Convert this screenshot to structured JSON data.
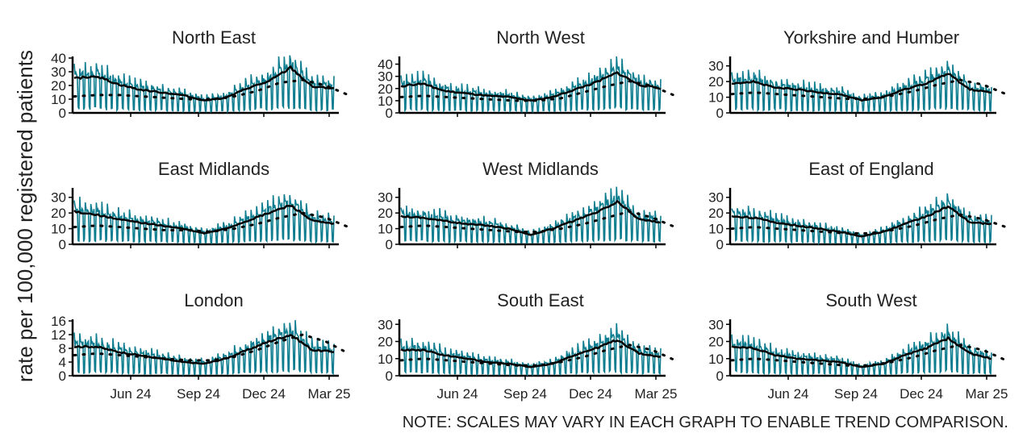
{
  "figure": {
    "ylabel": "rate per 100,000 registered patients",
    "note": "NOTE: SCALES MAY VARY IN EACH GRAPH TO ENABLE TREND COMPARISON.",
    "colors": {
      "daily": "#0e7d8f",
      "smoothed": "#000000",
      "baseline": "#000000"
    }
  },
  "chart_data": [
    {
      "type": "line",
      "title": "North East",
      "ylim": [
        0,
        40
      ],
      "yticks": [
        0,
        10,
        20,
        30,
        40
      ],
      "xticks": [
        "Jun 24",
        "Sep 24",
        "Dec 24",
        "Mar 25"
      ],
      "x": [
        "Mar 24",
        "Apr 24",
        "May 24",
        "Jun 24",
        "Jul 24",
        "Aug 24",
        "Sep 24",
        "Oct 24",
        "Nov 24",
        "Dec 24",
        "Jan 25",
        "Feb 25",
        "Mar 25"
      ],
      "series": [
        {
          "name": "",
          "values": [
            25,
            27,
            21,
            17,
            15,
            13,
            9,
            11,
            18,
            23,
            33,
            19,
            18
          ]
        },
        {
          "name": "",
          "values": [
            12,
            13,
            13,
            12,
            11,
            10,
            10,
            12,
            16,
            22,
            24,
            20,
            13
          ]
        }
      ]
    },
    {
      "type": "line",
      "title": "North West",
      "ylim": [
        0,
        45
      ],
      "yticks": [
        0,
        10,
        20,
        30,
        40
      ],
      "xticks": [
        "Jun 24",
        "Sep 24",
        "Dec 24",
        "Mar 25"
      ],
      "x": [
        "Mar 24",
        "Apr 24",
        "May 24",
        "Jun 24",
        "Jul 24",
        "Aug 24",
        "Sep 24",
        "Oct 24",
        "Nov 24",
        "Dec 24",
        "Jan 25",
        "Feb 25",
        "Mar 25"
      ],
      "series": [
        {
          "name": "",
          "values": [
            22,
            24,
            18,
            16,
            14,
            13,
            10,
            13,
            19,
            25,
            33,
            23,
            20
          ]
        },
        {
          "name": "",
          "values": [
            13,
            14,
            13,
            12,
            11,
            10,
            10,
            12,
            17,
            22,
            26,
            22,
            14
          ]
        }
      ]
    },
    {
      "type": "line",
      "title": "Yorkshire and Humber",
      "ylim": [
        0,
        35
      ],
      "yticks": [
        0,
        10,
        20,
        30
      ],
      "xticks": [
        "Jun 24",
        "Sep 24",
        "Dec 24",
        "Mar 25"
      ],
      "x": [
        "Mar 24",
        "Apr 24",
        "May 24",
        "Jun 24",
        "Jul 24",
        "Aug 24",
        "Sep 24",
        "Oct 24",
        "Nov 24",
        "Dec 24",
        "Jan 25",
        "Feb 25",
        "Mar 25"
      ],
      "series": [
        {
          "name": "",
          "values": [
            19,
            20,
            16,
            15,
            13,
            12,
            8,
            10,
            15,
            19,
            25,
            15,
            13
          ]
        },
        {
          "name": "",
          "values": [
            12,
            13,
            12,
            11,
            10,
            9,
            9,
            11,
            14,
            18,
            21,
            18,
            12
          ]
        }
      ]
    },
    {
      "type": "line",
      "title": "East Midlands",
      "ylim": [
        0,
        35
      ],
      "yticks": [
        0,
        10,
        20,
        30
      ],
      "xticks": [
        "Jun 24",
        "Sep 24",
        "Dec 24",
        "Mar 25"
      ],
      "x": [
        "Mar 24",
        "Apr 24",
        "May 24",
        "Jun 24",
        "Jul 24",
        "Aug 24",
        "Sep 24",
        "Oct 24",
        "Nov 24",
        "Dec 24",
        "Jan 25",
        "Feb 25",
        "Mar 25"
      ],
      "series": [
        {
          "name": "",
          "values": [
            21,
            19,
            16,
            14,
            12,
            10,
            7,
            10,
            15,
            20,
            25,
            15,
            13
          ]
        },
        {
          "name": "",
          "values": [
            11,
            12,
            11,
            10,
            9,
            9,
            8,
            10,
            13,
            17,
            20,
            17,
            11
          ]
        }
      ]
    },
    {
      "type": "line",
      "title": "West Midlands",
      "ylim": [
        0,
        35
      ],
      "yticks": [
        0,
        10,
        20,
        30
      ],
      "xticks": [
        "Jun 24",
        "Sep 24",
        "Dec 24",
        "Mar 25"
      ],
      "x": [
        "Mar 24",
        "Apr 24",
        "May 24",
        "Jun 24",
        "Jul 24",
        "Aug 24",
        "Sep 24",
        "Oct 24",
        "Nov 24",
        "Dec 24",
        "Jan 25",
        "Feb 25",
        "Mar 25"
      ],
      "series": [
        {
          "name": "",
          "values": [
            18,
            17,
            15,
            13,
            12,
            10,
            6,
            10,
            15,
            20,
            27,
            16,
            14
          ]
        },
        {
          "name": "",
          "values": [
            11,
            12,
            11,
            10,
            9,
            8,
            8,
            10,
            13,
            17,
            21,
            17,
            11
          ]
        }
      ]
    },
    {
      "type": "line",
      "title": "East of England",
      "ylim": [
        0,
        35
      ],
      "yticks": [
        0,
        10,
        20,
        30
      ],
      "xticks": [
        "Jun 24",
        "Sep 24",
        "Dec 24",
        "Mar 25"
      ],
      "x": [
        "Mar 24",
        "Apr 24",
        "May 24",
        "Jun 24",
        "Jul 24",
        "Aug 24",
        "Sep 24",
        "Oct 24",
        "Nov 24",
        "Dec 24",
        "Jan 25",
        "Feb 25",
        "Mar 25"
      ],
      "series": [
        {
          "name": "",
          "values": [
            18,
            17,
            14,
            12,
            10,
            8,
            5,
            8,
            13,
            18,
            24,
            14,
            13
          ]
        },
        {
          "name": "",
          "values": [
            10,
            11,
            10,
            9,
            8,
            7,
            7,
            9,
            12,
            16,
            19,
            16,
            11
          ]
        }
      ]
    },
    {
      "type": "line",
      "title": "London",
      "ylim": [
        0,
        16
      ],
      "yticks": [
        0,
        4,
        8,
        12,
        16
      ],
      "xticks": [
        "Jun 24",
        "Sep 24",
        "Dec 24",
        "Mar 25"
      ],
      "x": [
        "Mar 24",
        "Apr 24",
        "May 24",
        "Jun 24",
        "Jul 24",
        "Aug 24",
        "Sep 24",
        "Oct 24",
        "Nov 24",
        "Dec 24",
        "Jan 25",
        "Feb 25",
        "Mar 25"
      ],
      "series": [
        {
          "name": "",
          "values": [
            8.5,
            8.5,
            7,
            6,
            5,
            4,
            3.5,
            5,
            7.5,
            10,
            12,
            7.5,
            7
          ]
        },
        {
          "name": "",
          "values": [
            6,
            6.5,
            6,
            5.5,
            5,
            4.5,
            4.5,
            5.5,
            7.5,
            10,
            12,
            10,
            6.5
          ]
        }
      ]
    },
    {
      "type": "line",
      "title": "South East",
      "ylim": [
        0,
        32
      ],
      "yticks": [
        0,
        10,
        20,
        30
      ],
      "xticks": [
        "Jun 24",
        "Sep 24",
        "Dec 24",
        "Mar 25"
      ],
      "x": [
        "Mar 24",
        "Apr 24",
        "May 24",
        "Jun 24",
        "Jul 24",
        "Aug 24",
        "Sep 24",
        "Oct 24",
        "Nov 24",
        "Dec 24",
        "Jan 25",
        "Feb 25",
        "Mar 25"
      ],
      "series": [
        {
          "name": "",
          "values": [
            15,
            15,
            12,
            10,
            8,
            7,
            5,
            7,
            12,
            16,
            21,
            13,
            11
          ]
        },
        {
          "name": "",
          "values": [
            9,
            10,
            9,
            8,
            7,
            6,
            6,
            8,
            11,
            15,
            18,
            15,
            9
          ]
        }
      ]
    },
    {
      "type": "line",
      "title": "South West",
      "ylim": [
        0,
        32
      ],
      "yticks": [
        0,
        10,
        20,
        30
      ],
      "xticks": [
        "Jun 24",
        "Sep 24",
        "Dec 24",
        "Mar 25"
      ],
      "x": [
        "Mar 24",
        "Apr 24",
        "May 24",
        "Jun 24",
        "Jul 24",
        "Aug 24",
        "Sep 24",
        "Oct 24",
        "Nov 24",
        "Dec 24",
        "Jan 25",
        "Feb 25",
        "Mar 25"
      ],
      "series": [
        {
          "name": "",
          "values": [
            17,
            16,
            12,
            10,
            9,
            8,
            5,
            7,
            12,
            16,
            22,
            13,
            10
          ]
        },
        {
          "name": "",
          "values": [
            9,
            10,
            9,
            8,
            7,
            6,
            6,
            8,
            11,
            15,
            18,
            15,
            9
          ]
        }
      ]
    }
  ]
}
